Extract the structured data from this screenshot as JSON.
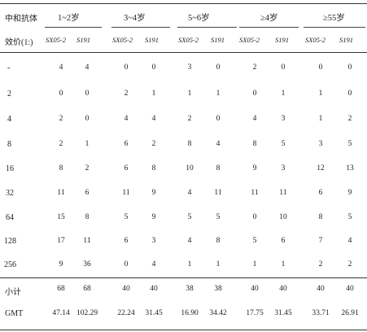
{
  "table": {
    "corner_line1": "中和抗体",
    "corner_line2": "效价(1:)",
    "groups": [
      "1~2岁",
      "3~4岁",
      "5~6岁",
      "≥4岁",
      "≥55岁"
    ],
    "subheaders": [
      "SX05-2",
      "S191",
      "SX05-2",
      "S191",
      "SX05-2",
      "S191",
      "SX05-2",
      "S191",
      "SX05-2",
      "S191"
    ],
    "rows": [
      {
        "label": "-",
        "values": [
          "4",
          "4",
          "0",
          "0",
          "3",
          "0",
          "2",
          "0",
          "0",
          "0"
        ]
      },
      {
        "label": "2",
        "values": [
          "0",
          "0",
          "2",
          "1",
          "1",
          "1",
          "0",
          "1",
          "1",
          "0"
        ]
      },
      {
        "label": "4",
        "values": [
          "2",
          "0",
          "4",
          "4",
          "2",
          "0",
          "4",
          "3",
          "1",
          "2"
        ]
      },
      {
        "label": "8",
        "values": [
          "2",
          "1",
          "6",
          "2",
          "8",
          "4",
          "8",
          "5",
          "3",
          "5"
        ]
      },
      {
        "label": "16",
        "values": [
          "8",
          "2",
          "6",
          "8",
          "10",
          "8",
          "9",
          "3",
          "12",
          "13"
        ]
      },
      {
        "label": "32",
        "values": [
          "11",
          "6",
          "11",
          "9",
          "4",
          "11",
          "11",
          "11",
          "6",
          "9"
        ]
      },
      {
        "label": "64",
        "values": [
          "15",
          "8",
          "5",
          "9",
          "5",
          "5",
          "0",
          "10",
          "8",
          "5"
        ]
      },
      {
        "label": "128",
        "values": [
          "17",
          "11",
          "6",
          "3",
          "4",
          "8",
          "5",
          "6",
          "7",
          "4"
        ]
      },
      {
        "label": "256",
        "values": [
          "9",
          "36",
          "0",
          "4",
          "1",
          "1",
          "1",
          "1",
          "2",
          "2"
        ]
      }
    ],
    "subtotal": {
      "label": "小计",
      "values": [
        "68",
        "68",
        "40",
        "40",
        "38",
        "38",
        "40",
        "40",
        "40",
        "40"
      ]
    },
    "gmt": {
      "label": "GMT",
      "values": [
        "47.14",
        "102.29",
        "22.24",
        "31.45",
        "16.90",
        "34.42",
        "17.75",
        "31.45",
        "33.71",
        "26.91"
      ]
    }
  }
}
